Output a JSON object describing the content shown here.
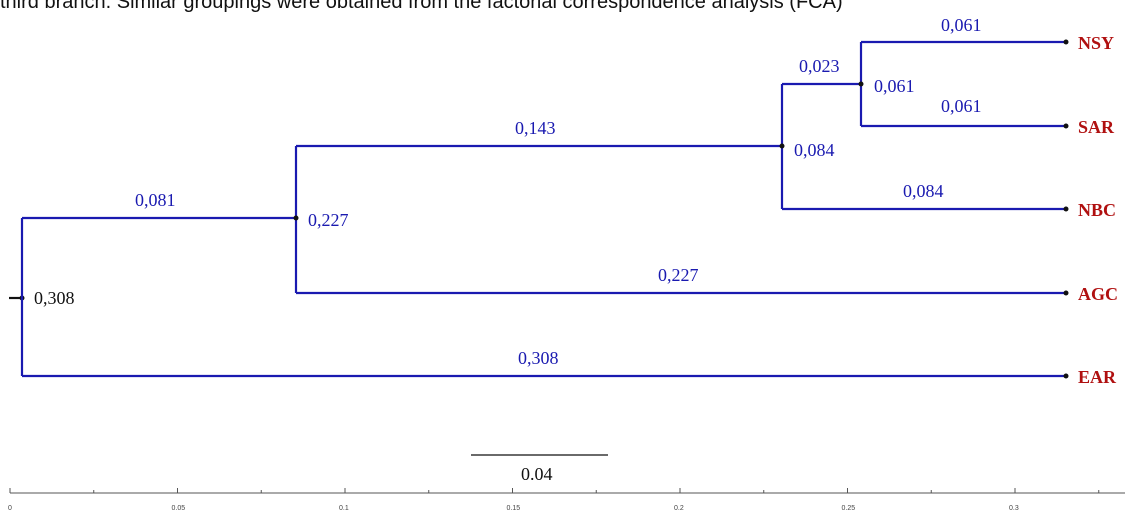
{
  "caption": "third branch. Similar groupings were obtained from the factorial correspondence analysis (FCA)",
  "colors": {
    "branch": "#1a1ab0",
    "leaf": "#b01010",
    "text": "#111111"
  },
  "tree": {
    "root_label": "0,308",
    "nodes": {
      "n_ac": "0,227",
      "n_nb": "0,084",
      "n_ns": "0,061"
    },
    "branches": {
      "root_to_n_ac": "0,081",
      "root_to_EAR": "0,308",
      "n_ac_to_n_nb": "0,143",
      "n_ac_to_AGC": "0,227",
      "n_nb_to_n_ns": "0,023",
      "n_nb_to_NBC": "0,084",
      "n_ns_to_NSY": "0,061",
      "n_ns_to_SAR": "0,061"
    },
    "leaves": [
      "NSY",
      "SAR",
      "NBC",
      "AGC",
      "EAR"
    ]
  },
  "scale_bar": {
    "label": "0.04"
  },
  "axis": {
    "ticks": [
      "0",
      "0.05",
      "0.1",
      "0.15",
      "0.2",
      "0.25",
      "0.3"
    ]
  }
}
